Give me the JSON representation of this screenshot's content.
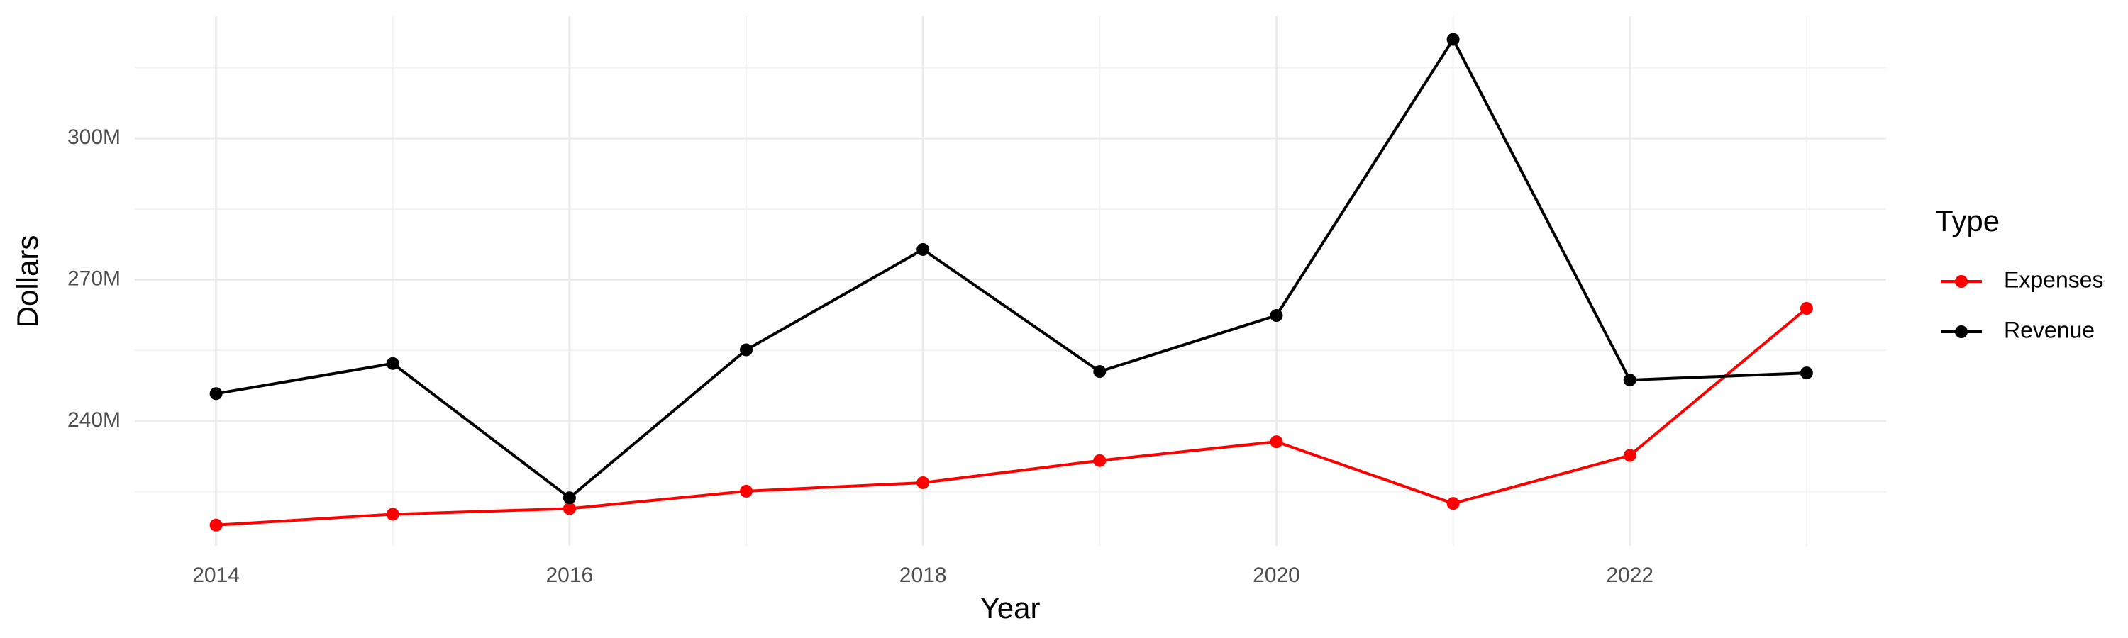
{
  "chart_data": {
    "type": "line",
    "x_label": "Year",
    "y_label": "Dollars",
    "x": [
      2014,
      2015,
      2016,
      2017,
      2018,
      2019,
      2020,
      2021,
      2022,
      2023
    ],
    "series": [
      {
        "name": "Expenses",
        "color": "#ff0000",
        "values": [
          217900000,
          220200000,
          221400000,
          225100000,
          226900000,
          231600000,
          235600000,
          222500000,
          232700000,
          263900000
        ]
      },
      {
        "name": "Revenue",
        "color": "#000000",
        "values": [
          245800000,
          252200000,
          223700000,
          255100000,
          276400000,
          250500000,
          262400000,
          321000000,
          248700000,
          250200000
        ]
      }
    ],
    "legend_title": "Type",
    "legend": "right",
    "xlim": [
      2013.54,
      2023.45
    ],
    "xticks": [
      2014,
      2016,
      2018,
      2020,
      2022
    ],
    "xticks_minor": [
      2015,
      2017,
      2019,
      2021,
      2023
    ],
    "ylim": [
      213500000,
      325900000
    ],
    "yticks": [
      {
        "value": 240000000,
        "label": "240M"
      },
      {
        "value": 270000000,
        "label": "270M"
      },
      {
        "value": 300000000,
        "label": "300M"
      }
    ],
    "yticks_minor": [
      225000000,
      255000000,
      285000000,
      315000000
    ],
    "grid": true
  }
}
